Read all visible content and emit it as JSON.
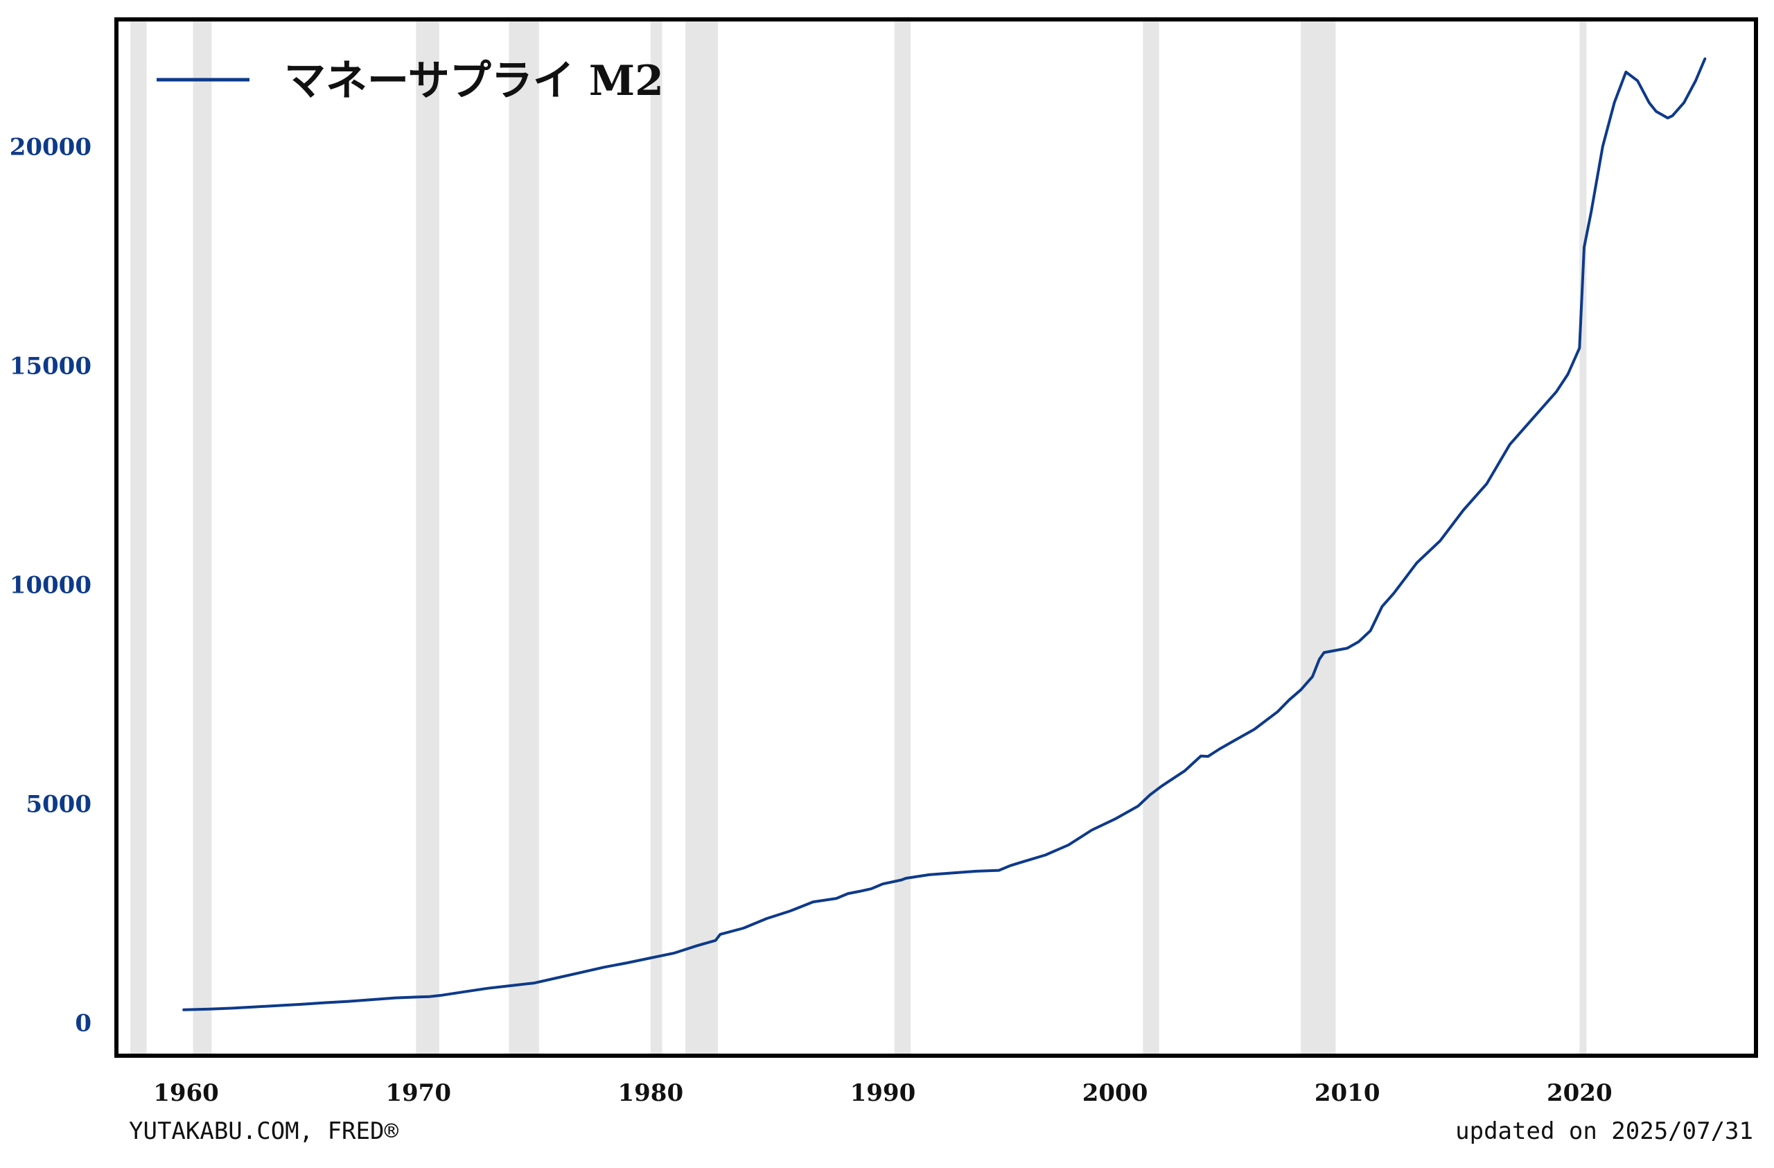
{
  "chart_data": {
    "type": "line",
    "legend": {
      "label": "マネーサプライ M2",
      "placement": "top-left"
    },
    "series": [
      {
        "name": "マネーサプライ M2",
        "color": "#0d3a8a",
        "points": [
          [
            1959.9,
            297
          ],
          [
            1961.0,
            315
          ],
          [
            1962.0,
            335
          ],
          [
            1963.0,
            365
          ],
          [
            1964.0,
            395
          ],
          [
            1965.0,
            425
          ],
          [
            1966.0,
            460
          ],
          [
            1967.0,
            490
          ],
          [
            1968.0,
            530
          ],
          [
            1969.0,
            570
          ],
          [
            1970.0,
            590
          ],
          [
            1970.5,
            600
          ],
          [
            1971.0,
            630
          ],
          [
            1972.0,
            710
          ],
          [
            1973.0,
            790
          ],
          [
            1974.0,
            850
          ],
          [
            1975.0,
            910
          ],
          [
            1976.0,
            1030
          ],
          [
            1977.0,
            1150
          ],
          [
            1978.0,
            1270
          ],
          [
            1979.0,
            1370
          ],
          [
            1980.0,
            1480
          ],
          [
            1981.0,
            1590
          ],
          [
            1982.0,
            1760
          ],
          [
            1982.8,
            1880
          ],
          [
            1983.0,
            2020
          ],
          [
            1984.0,
            2160
          ],
          [
            1985.0,
            2380
          ],
          [
            1986.0,
            2550
          ],
          [
            1987.0,
            2760
          ],
          [
            1988.0,
            2840
          ],
          [
            1988.5,
            2950
          ],
          [
            1989.0,
            3000
          ],
          [
            1989.5,
            3060
          ],
          [
            1990.0,
            3170
          ],
          [
            1990.8,
            3260
          ],
          [
            1991.0,
            3300
          ],
          [
            1992.0,
            3380
          ],
          [
            1993.0,
            3420
          ],
          [
            1994.0,
            3460
          ],
          [
            1995.0,
            3480
          ],
          [
            1995.5,
            3590
          ],
          [
            1996.0,
            3670
          ],
          [
            1997.0,
            3830
          ],
          [
            1998.0,
            4060
          ],
          [
            1999.0,
            4400
          ],
          [
            2000.0,
            4650
          ],
          [
            2001.0,
            4950
          ],
          [
            2001.5,
            5200
          ],
          [
            2002.0,
            5400
          ],
          [
            2003.0,
            5750
          ],
          [
            2003.7,
            6090
          ],
          [
            2004.0,
            6080
          ],
          [
            2004.5,
            6250
          ],
          [
            2005.0,
            6400
          ],
          [
            2006.0,
            6700
          ],
          [
            2007.0,
            7100
          ],
          [
            2007.5,
            7370
          ],
          [
            2008.0,
            7600
          ],
          [
            2008.5,
            7900
          ],
          [
            2008.8,
            8300
          ],
          [
            2009.0,
            8450
          ],
          [
            2010.0,
            8550
          ],
          [
            2010.5,
            8700
          ],
          [
            2011.0,
            8950
          ],
          [
            2011.5,
            9500
          ],
          [
            2012.0,
            9800
          ],
          [
            2013.0,
            10500
          ],
          [
            2014.0,
            11000
          ],
          [
            2015.0,
            11700
          ],
          [
            2016.0,
            12300
          ],
          [
            2017.0,
            13200
          ],
          [
            2018.0,
            13800
          ],
          [
            2019.0,
            14400
          ],
          [
            2019.5,
            14800
          ],
          [
            2020.0,
            15400
          ],
          [
            2020.2,
            17700
          ],
          [
            2020.5,
            18500
          ],
          [
            2021.0,
            20000
          ],
          [
            2021.5,
            21000
          ],
          [
            2022.0,
            21700
          ],
          [
            2022.5,
            21500
          ],
          [
            2023.0,
            21000
          ],
          [
            2023.3,
            20800
          ],
          [
            2023.8,
            20650
          ],
          [
            2024.0,
            20700
          ],
          [
            2024.5,
            21000
          ],
          [
            2025.0,
            21500
          ],
          [
            2025.4,
            22000
          ]
        ]
      }
    ],
    "recessions": [
      [
        1957.6,
        1958.3
      ],
      [
        1960.3,
        1961.1
      ],
      [
        1969.9,
        1970.9
      ],
      [
        1973.9,
        1975.2
      ],
      [
        1980.0,
        1980.5
      ],
      [
        1981.5,
        1982.9
      ],
      [
        1990.5,
        1991.2
      ],
      [
        2001.2,
        2001.9
      ],
      [
        2008.0,
        2009.5
      ],
      [
        2020.0,
        2020.3
      ]
    ],
    "xlim": [
      1957.0,
      2027.6
    ],
    "ylim": [
      -750,
      22900
    ],
    "xticks": [
      1960,
      1970,
      1980,
      1990,
      2000,
      2010,
      2020
    ],
    "yticks": [
      0,
      5000,
      10000,
      15000,
      20000
    ],
    "xtick_labels": [
      "1960",
      "1970",
      "1980",
      "1990",
      "2000",
      "2010",
      "2020"
    ],
    "ytick_labels": [
      "0",
      "5000",
      "10000",
      "15000",
      "20000"
    ],
    "grid": false,
    "recession_color": "#e6e6e6",
    "tick_color_y": "#0d3a8a",
    "tick_color_x": "#111111"
  },
  "footer": {
    "source": "YUTAKABU.COM, FRED®",
    "updated": "updated on 2025/07/31"
  }
}
